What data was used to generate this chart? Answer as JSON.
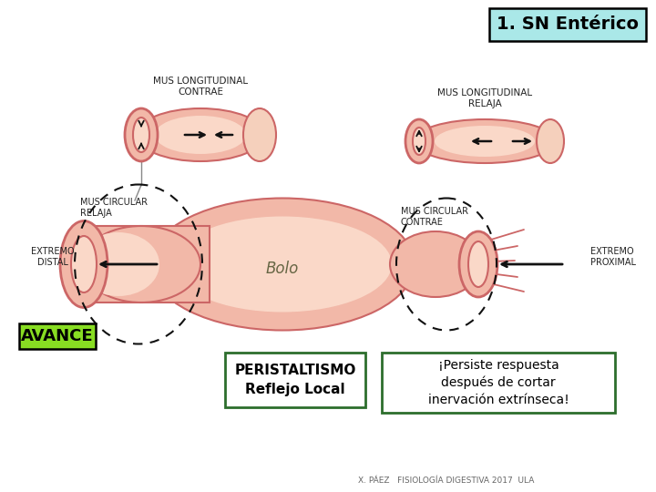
{
  "title": "1. SN Entérico",
  "title_box_bg": "#aae8e8",
  "title_box_border": "#000000",
  "title_fontsize": 14,
  "label_avance": "AVANCE",
  "label_avance_bg": "#88dd22",
  "label_avance_border": "#000000",
  "label_avance_fontsize": 13,
  "label_peristaltismo_line1": "PERISTALTISMO",
  "label_peristaltismo_line2": "Reflejo Local",
  "label_peristaltismo_bg": "#ffffff",
  "label_peristaltismo_border": "#2d6e2d",
  "label_peristaltismo_fontsize": 11,
  "label_persiste_line1": "¡Persiste respuesta",
  "label_persiste_line2": "después de cortar",
  "label_persiste_line3": "inervación extrínseca!",
  "label_persiste_bg": "#ffffff",
  "label_persiste_border": "#2d6e2d",
  "label_persiste_fontsize": 10,
  "label_extremo_proximal": "EXTREMO\nPROXIMAL",
  "label_extremo_distal": "EXTREMO\nDISTAL",
  "label_bolo": "Bolo",
  "label_mus_long_contrae": "MUS LONGITUDINAL\nCONTRAE",
  "label_mus_long_relaja": "MUS LONGITUDINAL\nRELAJA",
  "label_mus_circ_relaja": "MUS CIRCULAR\nRELAJA",
  "label_mus_circ_contrae": "MUS CIRCULAR\nCONTRAE",
  "footnote": "X. PÁEZ   FISIOLOGÍA DIGESTIVA 2017  ULA",
  "bg_color": "#ffffff",
  "intestine_main_color": "#f2b8a8",
  "intestine_border_color": "#cc6666",
  "intestine_inner_color": "#fad8c8",
  "intestine_open_color": "#f5d0bc",
  "dashed_circle_color": "#111111",
  "arrow_color": "#111111",
  "text_color": "#222222"
}
